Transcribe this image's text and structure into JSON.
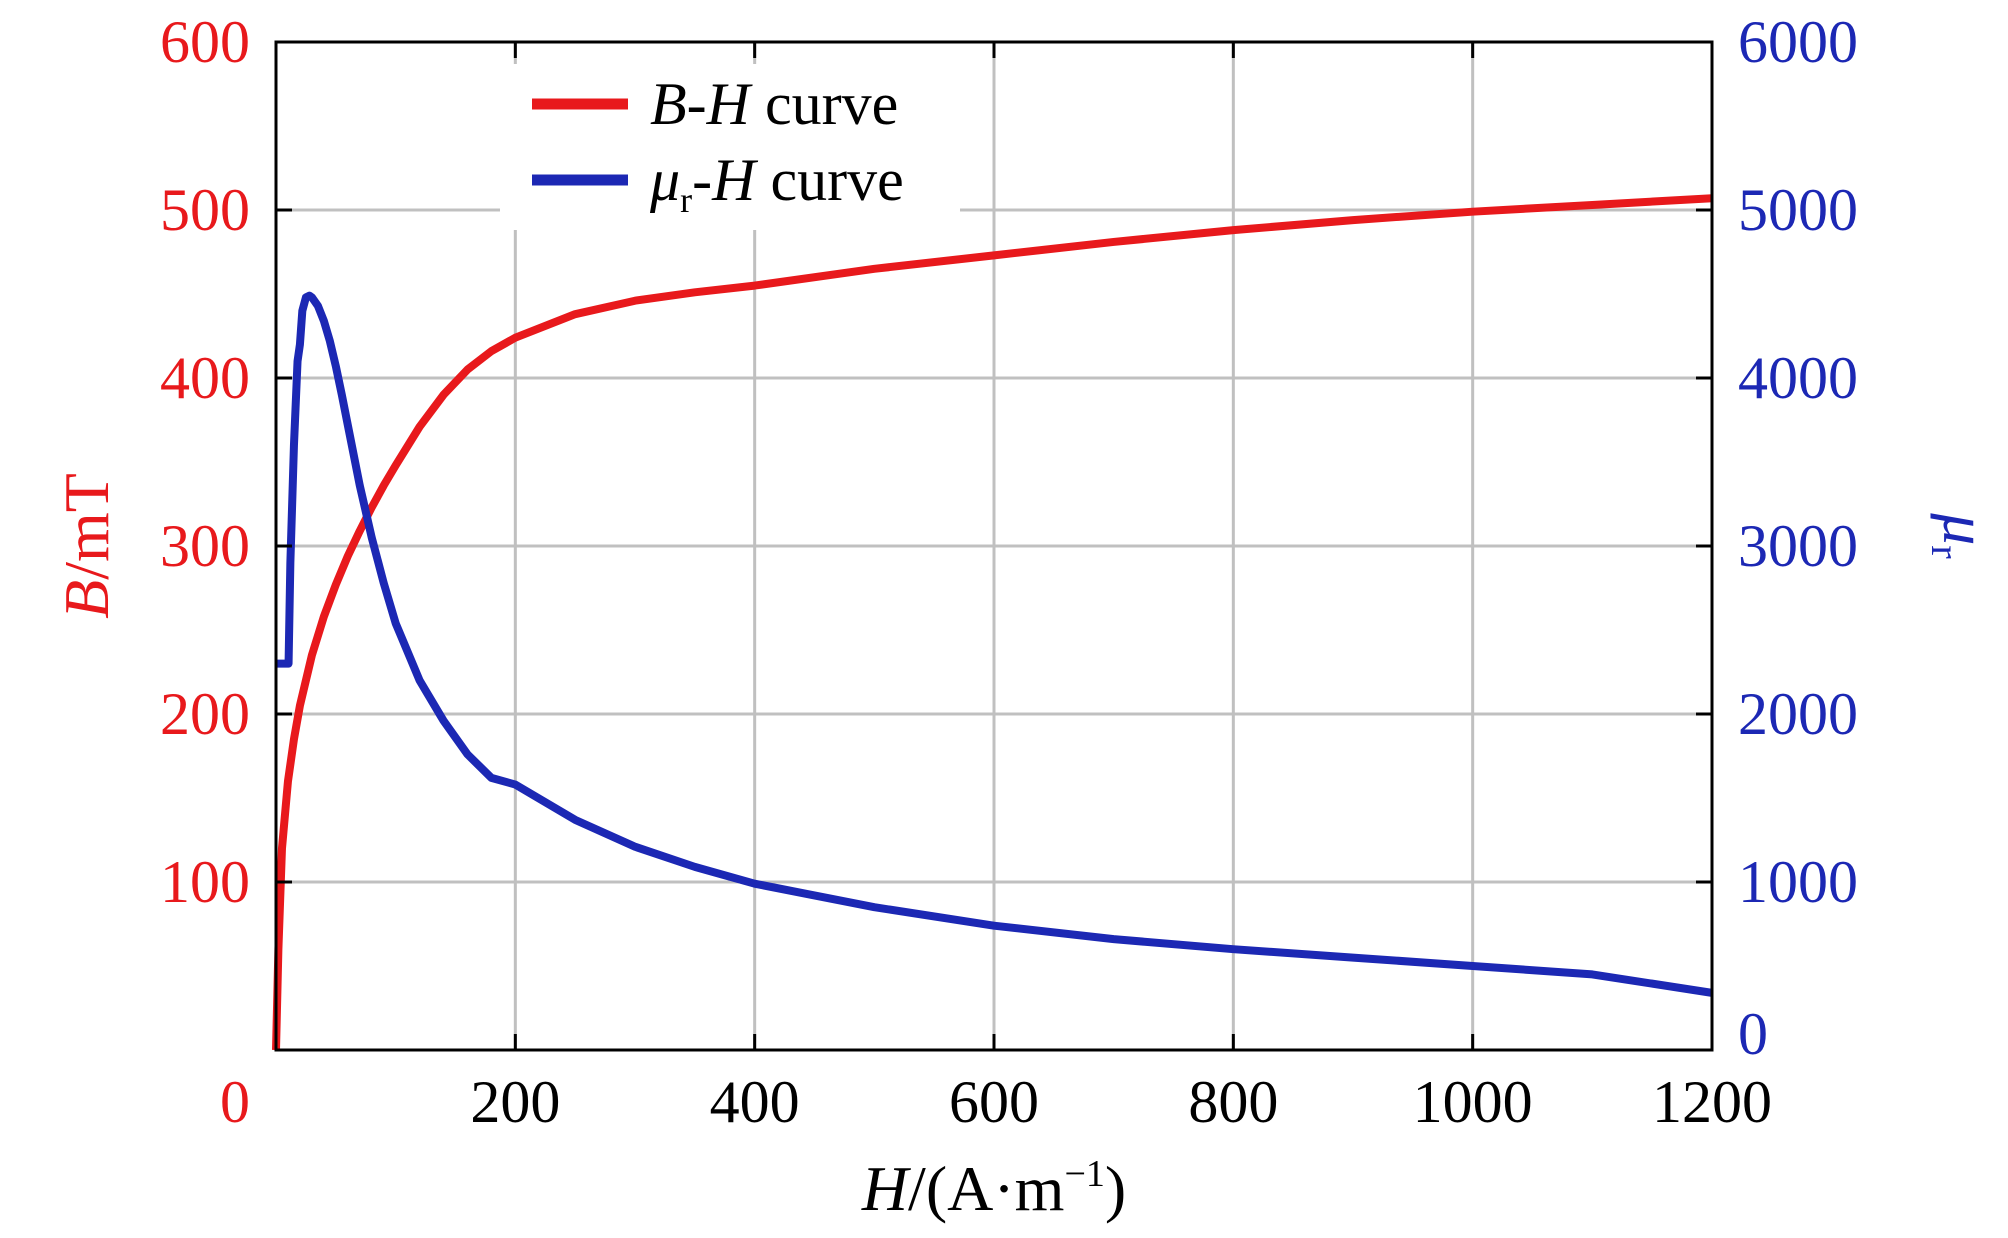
{
  "colors": {
    "bh": "#e8191c",
    "mu": "#1c28b4",
    "grid": "#c0c0c0",
    "axis": "#000000",
    "text": "#000000"
  },
  "chart_data": {
    "type": "line",
    "x_axis": {
      "label_italic": "H",
      "label_rest": "/(A·m",
      "label_sup": "−1",
      "label_close": ")",
      "lim": [
        0,
        1200
      ],
      "ticks": [
        200,
        400,
        600,
        800,
        1000,
        1200
      ],
      "tick_labels": [
        "200",
        "400",
        "600",
        "800",
        "1000",
        "1200"
      ]
    },
    "y_left": {
      "label_italic": "B",
      "label_rest": "/mT",
      "lim": [
        0,
        600
      ],
      "ticks": [
        0,
        100,
        200,
        300,
        400,
        500,
        600
      ],
      "tick_labels": [
        "0",
        "100",
        "200",
        "300",
        "400",
        "500",
        "600"
      ]
    },
    "y_right": {
      "label_italic": "μ",
      "label_sub": "r",
      "lim": [
        0,
        6000
      ],
      "ticks": [
        0,
        1000,
        2000,
        3000,
        4000,
        5000,
        6000
      ],
      "tick_labels": [
        "0",
        "1000",
        "2000",
        "3000",
        "4000",
        "5000",
        "6000"
      ]
    },
    "grid": true,
    "legend": {
      "position": "top-left",
      "entries": [
        {
          "series": "bh",
          "italic1": "B",
          "mid": "-",
          "italic2": "H",
          "sub": "",
          "rest": " curve"
        },
        {
          "series": "mu",
          "italic1": "μ",
          "mid": "-",
          "italic2": "H",
          "sub": "r",
          "rest": " curve"
        }
      ]
    },
    "series": [
      {
        "name": "B-H curve",
        "axis": "left",
        "color": "#e8191c",
        "x": [
          0,
          2,
          5,
          10,
          15,
          20,
          30,
          40,
          50,
          60,
          70,
          80,
          90,
          100,
          120,
          140,
          160,
          180,
          200,
          250,
          300,
          350,
          400,
          500,
          600,
          700,
          800,
          900,
          1000,
          1100,
          1200
        ],
        "y": [
          0,
          60,
          120,
          160,
          185,
          205,
          235,
          258,
          277,
          294,
          309,
          323,
          336,
          348,
          371,
          390,
          405,
          416,
          424,
          438,
          446,
          451,
          455,
          465,
          473,
          481,
          488,
          494,
          499,
          503,
          507
        ]
      },
      {
        "name": "μr-H curve",
        "axis": "right",
        "color": "#1c28b4",
        "x": [
          0,
          10,
          10.5,
          12,
          15,
          18,
          20,
          22,
          25,
          28,
          30,
          35,
          40,
          45,
          50,
          55,
          60,
          65,
          70,
          80,
          90,
          100,
          120,
          140,
          160,
          180,
          200,
          250,
          300,
          350,
          400,
          500,
          600,
          700,
          800,
          900,
          1000,
          1100,
          1200
        ],
        "y": [
          2300,
          2300,
          2300,
          2900,
          3600,
          4100,
          4200,
          4400,
          4480,
          4490,
          4480,
          4430,
          4340,
          4220,
          4070,
          3900,
          3720,
          3540,
          3360,
          3050,
          2780,
          2540,
          2200,
          1960,
          1760,
          1620,
          1580,
          1370,
          1210,
          1090,
          990,
          850,
          740,
          660,
          600,
          550,
          500,
          450,
          340
        ]
      }
    ]
  }
}
